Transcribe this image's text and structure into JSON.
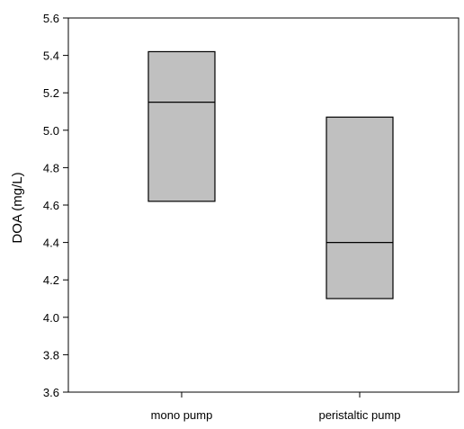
{
  "chart_data": {
    "type": "box",
    "title": "",
    "xlabel": "",
    "ylabel": "DOA (mg/L)",
    "ylim": [
      3.6,
      5.6
    ],
    "yticks": [
      3.6,
      3.8,
      4.0,
      4.2,
      4.4,
      4.6,
      4.8,
      5.0,
      5.2,
      5.4,
      5.6
    ],
    "ytick_labels": [
      "3.6",
      "3.8",
      "4.0",
      "4.2",
      "4.4",
      "4.6",
      "4.8",
      "5.0",
      "5.2",
      "5.4",
      "5.6"
    ],
    "categories": [
      "mono pump",
      "peristaltic pump"
    ],
    "boxes": [
      {
        "category": "mono pump",
        "q1": 4.62,
        "median": 5.15,
        "q3": 5.42
      },
      {
        "category": "peristaltic pump",
        "q1": 4.1,
        "median": 4.4,
        "q3": 5.07
      }
    ],
    "grid": false,
    "box_fill": "#c0c0c0",
    "line_color": "#000000"
  }
}
